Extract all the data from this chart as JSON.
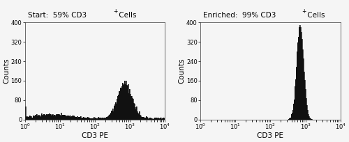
{
  "title_left": "Start:  59% CD3",
  "title_left_super": "+",
  "title_left_suffix": " Cells",
  "title_right": "Enriched:  99% CD3",
  "title_right_super": "+",
  "title_right_suffix": " Cells",
  "xlabel": "CD3 PE",
  "ylabel": "Counts",
  "xmin": 1.0,
  "xmax": 10000.0,
  "ylim_left": [
    0,
    400
  ],
  "ylim_right": [
    0,
    400
  ],
  "yticks_left": [
    0,
    80,
    160,
    240,
    320,
    400
  ],
  "yticks_right": [
    0,
    80,
    160,
    240,
    320,
    400
  ],
  "fill_color": "#111111",
  "edge_color": "#111111",
  "bg_color": "#f5f5f5",
  "title_fontsize": 7.5,
  "axis_fontsize": 6,
  "label_fontsize": 7.5,
  "figsize": [
    5.0,
    2.04
  ],
  "dpi": 100
}
